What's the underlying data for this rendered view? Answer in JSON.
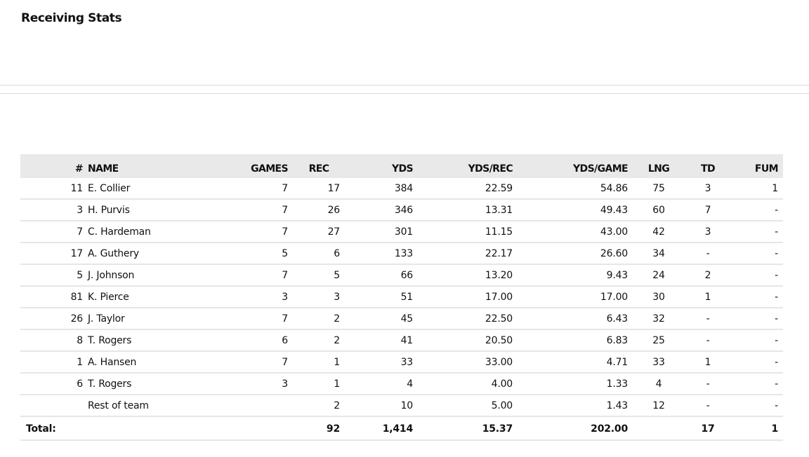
{
  "page": {
    "title": "Receiving Stats"
  },
  "table": {
    "headers": {
      "num": "#",
      "name": "NAME",
      "games": "GAMES",
      "rec": "REC",
      "yds": "YDS",
      "yds_rec": "YDS/REC",
      "yds_game": "YDS/GAME",
      "lng": "LNG",
      "td": "TD",
      "fum": "FUM"
    },
    "rows": [
      {
        "num": "11",
        "name": "E. Collier",
        "games": "7",
        "rec": "17",
        "yds": "384",
        "yds_rec": "22.59",
        "yds_game": "54.86",
        "lng": "75",
        "td": "3",
        "fum": "1"
      },
      {
        "num": "3",
        "name": "H. Purvis",
        "games": "7",
        "rec": "26",
        "yds": "346",
        "yds_rec": "13.31",
        "yds_game": "49.43",
        "lng": "60",
        "td": "7",
        "fum": "-"
      },
      {
        "num": "7",
        "name": "C. Hardeman",
        "games": "7",
        "rec": "27",
        "yds": "301",
        "yds_rec": "11.15",
        "yds_game": "43.00",
        "lng": "42",
        "td": "3",
        "fum": "-"
      },
      {
        "num": "17",
        "name": "A. Guthery",
        "games": "5",
        "rec": "6",
        "yds": "133",
        "yds_rec": "22.17",
        "yds_game": "26.60",
        "lng": "34",
        "td": "-",
        "fum": "-"
      },
      {
        "num": "5",
        "name": "J. Johnson",
        "games": "7",
        "rec": "5",
        "yds": "66",
        "yds_rec": "13.20",
        "yds_game": "9.43",
        "lng": "24",
        "td": "2",
        "fum": "-"
      },
      {
        "num": "81",
        "name": "K. Pierce",
        "games": "3",
        "rec": "3",
        "yds": "51",
        "yds_rec": "17.00",
        "yds_game": "17.00",
        "lng": "30",
        "td": "1",
        "fum": "-"
      },
      {
        "num": "26",
        "name": "J. Taylor",
        "games": "7",
        "rec": "2",
        "yds": "45",
        "yds_rec": "22.50",
        "yds_game": "6.43",
        "lng": "32",
        "td": "-",
        "fum": "-"
      },
      {
        "num": "8",
        "name": "T. Rogers",
        "games": "6",
        "rec": "2",
        "yds": "41",
        "yds_rec": "20.50",
        "yds_game": "6.83",
        "lng": "25",
        "td": "-",
        "fum": "-"
      },
      {
        "num": "1",
        "name": "A. Hansen",
        "games": "7",
        "rec": "1",
        "yds": "33",
        "yds_rec": "33.00",
        "yds_game": "4.71",
        "lng": "33",
        "td": "1",
        "fum": "-"
      },
      {
        "num": "6",
        "name": "T. Rogers",
        "games": "3",
        "rec": "1",
        "yds": "4",
        "yds_rec": "4.00",
        "yds_game": "1.33",
        "lng": "4",
        "td": "-",
        "fum": "-"
      },
      {
        "num": "",
        "name": "Rest of team",
        "games": "",
        "rec": "2",
        "yds": "10",
        "yds_rec": "5.00",
        "yds_game": "1.43",
        "lng": "12",
        "td": "-",
        "fum": "-"
      }
    ],
    "total": {
      "label": "Total:",
      "rec": "92",
      "yds": "1,414",
      "yds_rec": "15.37",
      "yds_game": "202.00",
      "lng": "",
      "td": "17",
      "fum": "1"
    }
  }
}
